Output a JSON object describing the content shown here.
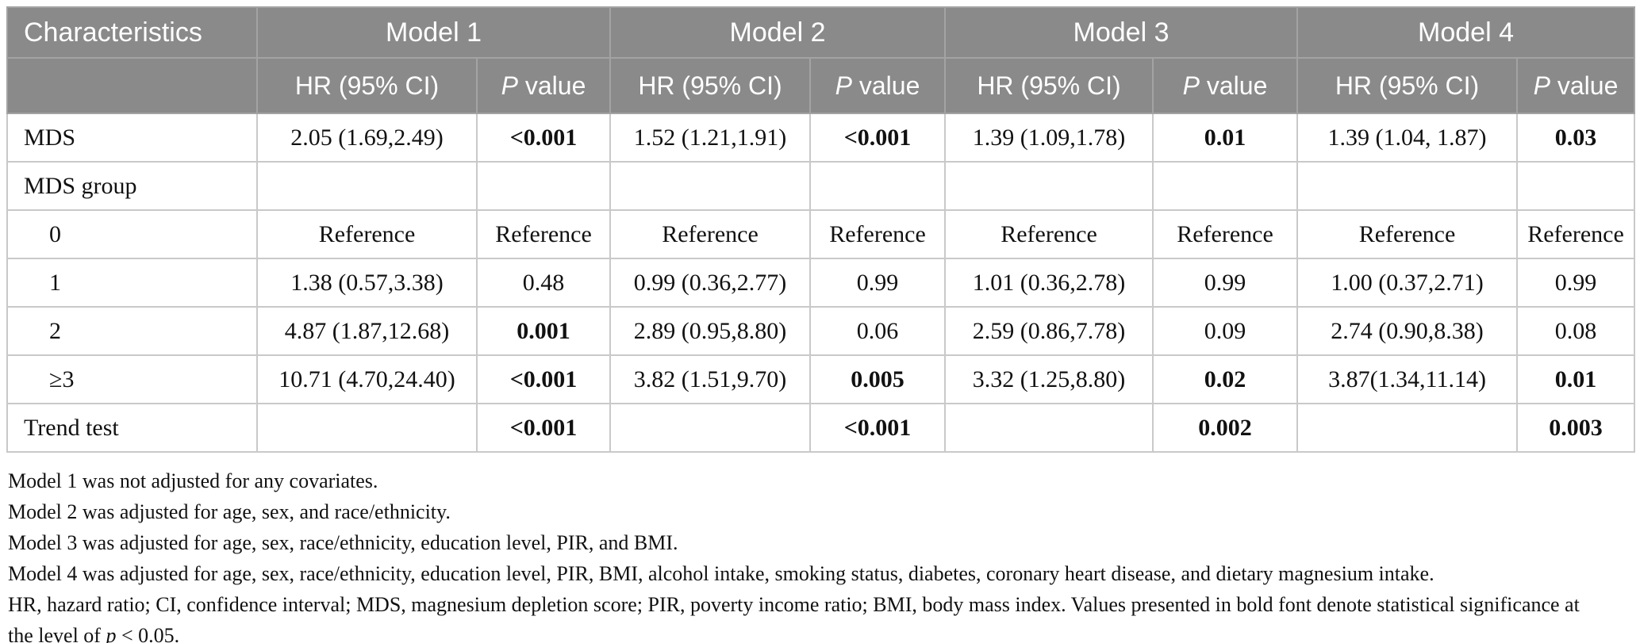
{
  "colors": {
    "header_bg": "#8a8a8a",
    "header_grid": "#a3a3a3",
    "body_grid": "#c9c9c9",
    "header_text": "#ffffff",
    "body_text": "#111111"
  },
  "table": {
    "header": {
      "characteristics": "Characteristics",
      "models": [
        "Model 1",
        "Model 2",
        "Model 3",
        "Model 4"
      ],
      "hr_label": "HR (95% CI)",
      "p_label_italic": "P",
      "p_label_rest": " value"
    },
    "rows": [
      {
        "label": "MDS",
        "indent": false,
        "cells": [
          {
            "text": "2.05 (1.69,2.49)",
            "bold": false
          },
          {
            "text": "<0.001",
            "bold": true
          },
          {
            "text": "1.52 (1.21,1.91)",
            "bold": false
          },
          {
            "text": "<0.001",
            "bold": true
          },
          {
            "text": "1.39 (1.09,1.78)",
            "bold": false
          },
          {
            "text": "0.01",
            "bold": true
          },
          {
            "text": "1.39 (1.04, 1.87)",
            "bold": false
          },
          {
            "text": "0.03",
            "bold": true
          }
        ]
      },
      {
        "label": "MDS group",
        "indent": false,
        "cells": [
          {
            "text": "",
            "bold": false
          },
          {
            "text": "",
            "bold": false
          },
          {
            "text": "",
            "bold": false
          },
          {
            "text": "",
            "bold": false
          },
          {
            "text": "",
            "bold": false
          },
          {
            "text": "",
            "bold": false
          },
          {
            "text": "",
            "bold": false
          },
          {
            "text": "",
            "bold": false
          }
        ]
      },
      {
        "label": "0",
        "indent": true,
        "cells": [
          {
            "text": "Reference",
            "bold": false
          },
          {
            "text": "Reference",
            "bold": false
          },
          {
            "text": "Reference",
            "bold": false
          },
          {
            "text": "Reference",
            "bold": false
          },
          {
            "text": "Reference",
            "bold": false
          },
          {
            "text": "Reference",
            "bold": false
          },
          {
            "text": "Reference",
            "bold": false
          },
          {
            "text": "Reference",
            "bold": false
          }
        ]
      },
      {
        "label": "1",
        "indent": true,
        "cells": [
          {
            "text": "1.38 (0.57,3.38)",
            "bold": false
          },
          {
            "text": "0.48",
            "bold": false
          },
          {
            "text": "0.99 (0.36,2.77)",
            "bold": false
          },
          {
            "text": "0.99",
            "bold": false
          },
          {
            "text": "1.01 (0.36,2.78)",
            "bold": false
          },
          {
            "text": "0.99",
            "bold": false
          },
          {
            "text": "1.00 (0.37,2.71)",
            "bold": false
          },
          {
            "text": "0.99",
            "bold": false
          }
        ]
      },
      {
        "label": "2",
        "indent": true,
        "cells": [
          {
            "text": "4.87 (1.87,12.68)",
            "bold": false
          },
          {
            "text": "0.001",
            "bold": true
          },
          {
            "text": "2.89 (0.95,8.80)",
            "bold": false
          },
          {
            "text": "0.06",
            "bold": false
          },
          {
            "text": "2.59 (0.86,7.78)",
            "bold": false
          },
          {
            "text": "0.09",
            "bold": false
          },
          {
            "text": "2.74 (0.90,8.38)",
            "bold": false
          },
          {
            "text": "0.08",
            "bold": false
          }
        ]
      },
      {
        "label": "≥3",
        "indent": true,
        "cells": [
          {
            "text": "10.71 (4.70,24.40)",
            "bold": false
          },
          {
            "text": "<0.001",
            "bold": true
          },
          {
            "text": "3.82 (1.51,9.70)",
            "bold": false
          },
          {
            "text": "0.005",
            "bold": true
          },
          {
            "text": "3.32 (1.25,8.80)",
            "bold": false
          },
          {
            "text": "0.02",
            "bold": true
          },
          {
            "text": "3.87(1.34,11.14)",
            "bold": false
          },
          {
            "text": "0.01",
            "bold": true
          }
        ]
      },
      {
        "label": "Trend test",
        "indent": false,
        "cells": [
          {
            "text": "",
            "bold": false
          },
          {
            "text": "<0.001",
            "bold": true
          },
          {
            "text": "",
            "bold": false
          },
          {
            "text": "<0.001",
            "bold": true
          },
          {
            "text": "",
            "bold": false
          },
          {
            "text": "0.002",
            "bold": true
          },
          {
            "text": "",
            "bold": false
          },
          {
            "text": "0.003",
            "bold": true
          }
        ]
      }
    ]
  },
  "footnotes": [
    [
      {
        "text": "Model 1 was not adjusted for any covariates."
      }
    ],
    [
      {
        "text": "Model 2 was adjusted for age, sex, and race/ethnicity."
      }
    ],
    [
      {
        "text": "Model 3 was adjusted for age, sex, race/ethnicity, education level, PIR, and BMI."
      }
    ],
    [
      {
        "text": "Model 4 was adjusted for age, sex, race/ethnicity, education level, PIR, BMI, alcohol intake, smoking status, diabetes, coronary heart disease, and dietary magnesium intake."
      }
    ],
    [
      {
        "text": "HR, hazard ratio; CI, confidence interval; MDS, magnesium depletion score; PIR, poverty income ratio; BMI, body mass index. Values presented in bold font denote statistical significance at"
      }
    ],
    [
      {
        "text": "the level of "
      },
      {
        "text": "p",
        "italic": true
      },
      {
        "text": " < 0.05."
      }
    ]
  ]
}
